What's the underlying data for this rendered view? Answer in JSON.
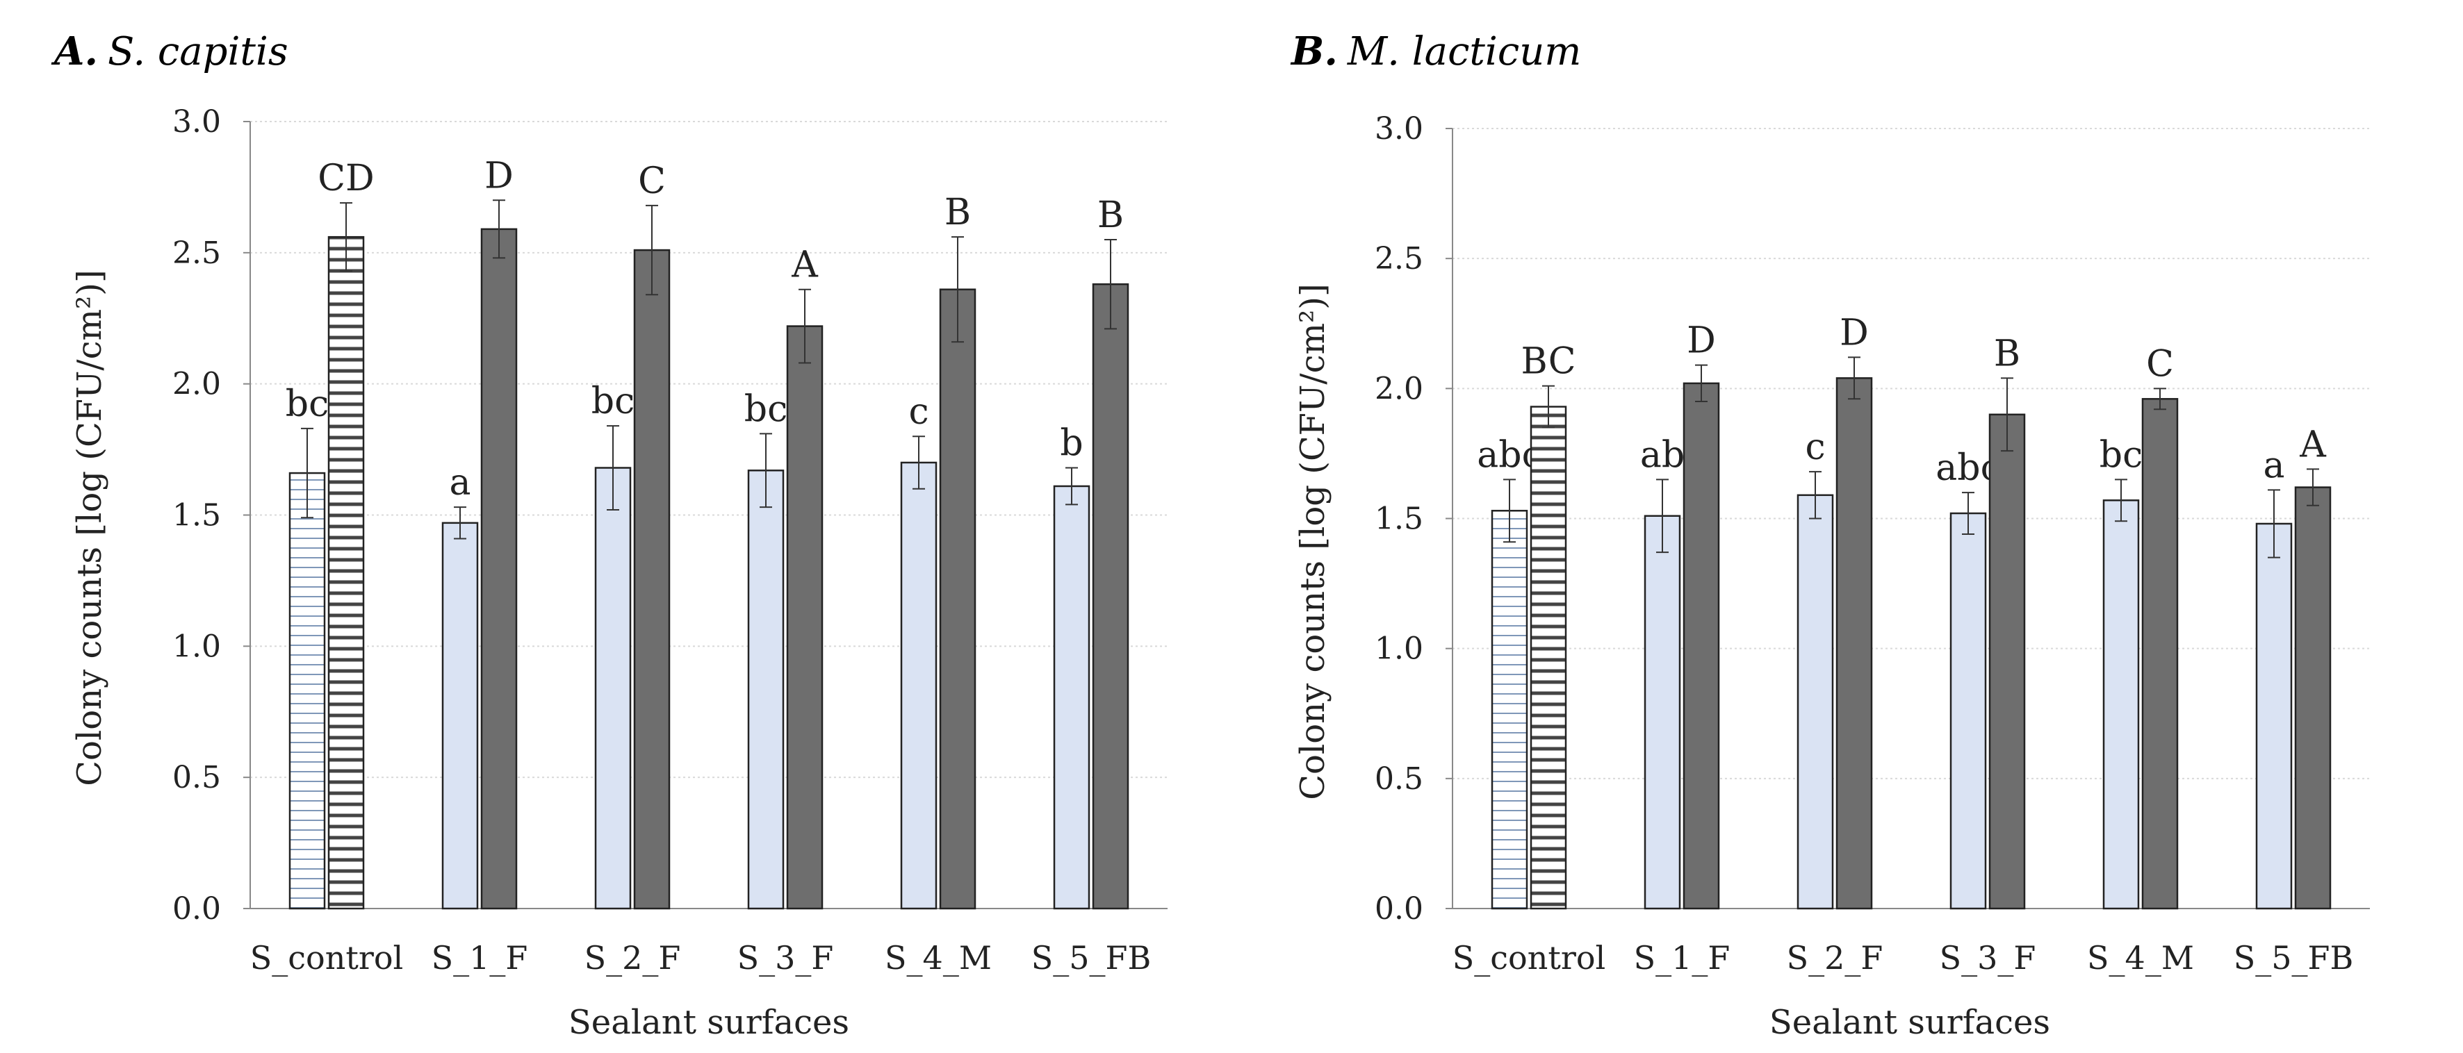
{
  "colors": {
    "before_fill": "#dae3f3",
    "after_fill": "#6e6e6e",
    "outline": "#222222",
    "grid": "#d9d9d9",
    "hatch": "#7f97b8",
    "hatch_dark": "#444444"
  },
  "chart_data": [
    {
      "type": "bar",
      "panel_label": "A.",
      "organism": "S. capitis",
      "xlabel": "Sealant surfaces",
      "ylabel": "Colony counts [log (CFU/cm²)]",
      "ylim": [
        0,
        3.0
      ],
      "yticks": [
        "0.0",
        "0.5",
        "1.0",
        "1.5",
        "2.0",
        "2.5",
        "3.0"
      ],
      "grid": true,
      "categories": [
        "S_control",
        "S_1_F",
        "S_2_F",
        "S_3_F",
        "S_4_M",
        "S_5_FB"
      ],
      "series": [
        {
          "name": "light",
          "values": [
            1.66,
            1.47,
            1.68,
            1.67,
            1.7,
            1.61
          ],
          "errors": [
            0.17,
            0.06,
            0.16,
            0.14,
            0.1,
            0.07
          ],
          "letters": [
            "bc",
            "a",
            "bc",
            "bc",
            "c",
            "b"
          ]
        },
        {
          "name": "dark",
          "values": [
            2.56,
            2.59,
            2.51,
            2.22,
            2.36,
            2.38
          ],
          "errors": [
            0.13,
            0.11,
            0.17,
            0.14,
            0.2,
            0.17
          ],
          "letters": [
            "CD",
            "D",
            "C",
            "A",
            "B",
            "B"
          ]
        }
      ]
    },
    {
      "type": "bar",
      "panel_label": "B.",
      "organism": "M. lacticum",
      "xlabel": "Sealant surfaces",
      "ylabel": "Colony counts [log (CFU/cm²)]",
      "ylim": [
        0,
        3.0
      ],
      "yticks": [
        "0.0",
        "0.5",
        "1.0",
        "1.5",
        "2.0",
        "2.5",
        "3.0"
      ],
      "grid": true,
      "categories": [
        "S_control",
        "S_1_F",
        "S_2_F",
        "S_3_F",
        "S_4_M",
        "S_5_FB"
      ],
      "series": [
        {
          "name": "light",
          "values": [
            1.53,
            1.51,
            1.59,
            1.52,
            1.57,
            1.48
          ],
          "errors": [
            0.12,
            0.14,
            0.09,
            0.08,
            0.08,
            0.13
          ],
          "letters": [
            "abc",
            "ab",
            "c",
            "abc",
            "bc",
            "a"
          ]
        },
        {
          "name": "dark",
          "values": [
            1.93,
            2.02,
            2.04,
            1.9,
            1.96,
            1.62
          ],
          "errors": [
            0.08,
            0.07,
            0.08,
            0.14,
            0.04,
            0.07
          ],
          "letters": [
            "BC",
            "D",
            "D",
            "B",
            "C",
            "A"
          ]
        }
      ]
    }
  ]
}
